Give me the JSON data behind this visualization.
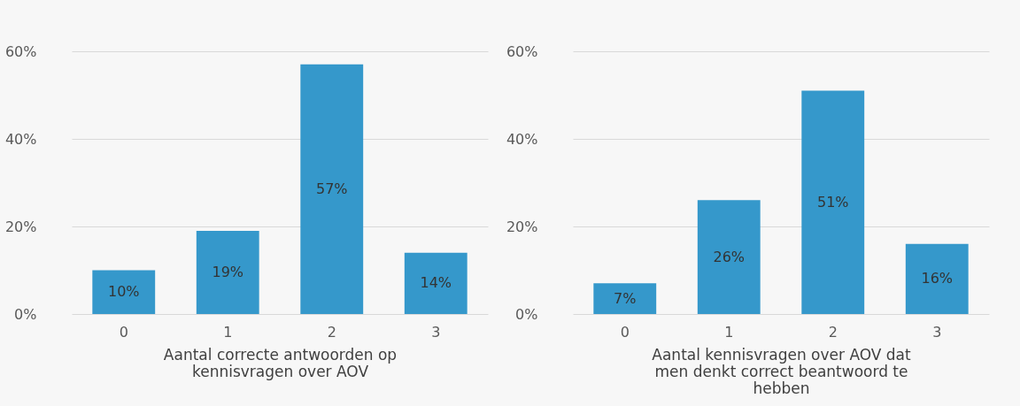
{
  "chart_data": [
    {
      "type": "bar",
      "categories": [
        "0",
        "1",
        "2",
        "3"
      ],
      "values": [
        10,
        19,
        57,
        14
      ],
      "value_labels": [
        "10%",
        "19%",
        "57%",
        "14%"
      ],
      "color": "#3598cb",
      "xlabel": "Aantal correcte antwoorden op kennisvragen over AOV",
      "ylim": [
        0,
        60
      ],
      "yticks": [
        {
          "value": 0,
          "label": "0%"
        },
        {
          "value": 20,
          "label": "20%"
        },
        {
          "value": 40,
          "label": "40%"
        },
        {
          "value": 60,
          "label": "60%"
        }
      ],
      "grid": "y"
    },
    {
      "type": "bar",
      "categories": [
        "0",
        "1",
        "2",
        "3"
      ],
      "values": [
        7,
        26,
        51,
        16
      ],
      "value_labels": [
        "7%",
        "26%",
        "51%",
        "16%"
      ],
      "color": "#3598cb",
      "xlabel": "Aantal kennisvragen over AOV dat men denkt correct beantwoord te hebben",
      "ylim": [
        0,
        60
      ],
      "yticks": [
        {
          "value": 0,
          "label": "0%"
        },
        {
          "value": 20,
          "label": "20%"
        },
        {
          "value": 40,
          "label": "40%"
        },
        {
          "value": 60,
          "label": "60%"
        }
      ],
      "grid": "y"
    }
  ]
}
